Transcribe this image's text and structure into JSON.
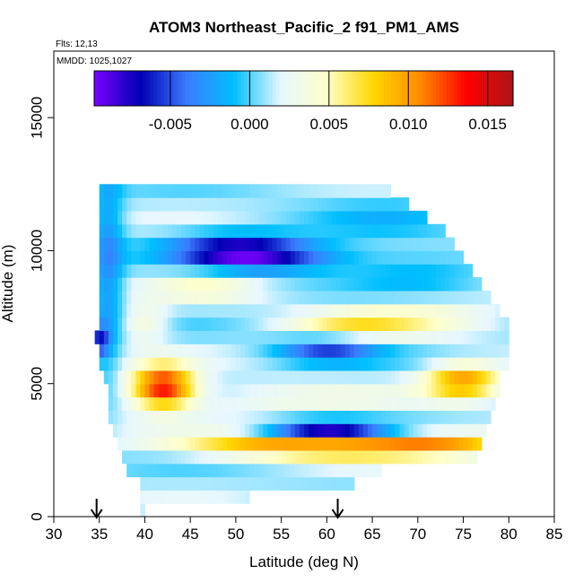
{
  "chart_data": {
    "type": "heatmap",
    "title": "ATOM3 Northeast_Pacific_2 f91_PM1_AMS",
    "flights_note": "Flts: 12,13",
    "date_note": "MMDD: 1025,1027",
    "xlabel": "Latitude (deg N)",
    "ylabel": "Altitude (m)",
    "xlim": [
      30,
      85
    ],
    "ylim": [
      0,
      17500
    ],
    "x_ticks": [
      30,
      35,
      40,
      45,
      50,
      55,
      60,
      65,
      70,
      75,
      80,
      85
    ],
    "y_ticks": [
      0,
      5000,
      10000,
      15000
    ],
    "grid": false,
    "colorbar": {
      "placement": "top",
      "range": [
        -0.0098,
        0.0166
      ],
      "ticks": [
        -0.005,
        0.0,
        0.005,
        0.01,
        0.015
      ],
      "tick_labels": [
        "-0.005",
        "0.000",
        "0.005",
        "0.010",
        "0.015"
      ],
      "colors": [
        "#7a00ff",
        "#0000b4",
        "#3a7dff",
        "#00bfff",
        "#e6f7ff",
        "#ffffc8",
        "#ffd700",
        "#ff8c00",
        "#ff0000",
        "#aa1616"
      ]
    },
    "arrows_latitude": [
      34.7,
      61.2
    ],
    "alt_bin_m": 500,
    "lat_bin_deg": 0.5,
    "coverage": [
      {
        "alt": 250,
        "lat_min": 39.5,
        "lat_max": 40.0
      },
      {
        "alt": 750,
        "lat_min": 39.5,
        "lat_max": 51.5
      },
      {
        "alt": 1250,
        "lat_min": 39.5,
        "lat_max": 63.0
      },
      {
        "alt": 1750,
        "lat_min": 38.0,
        "lat_max": 66.0
      },
      {
        "alt": 2250,
        "lat_min": 37.5,
        "lat_max": 76.5
      },
      {
        "alt": 2750,
        "lat_min": 37.0,
        "lat_max": 77.0
      },
      {
        "alt": 3250,
        "lat_min": 36.5,
        "lat_max": 77.5
      },
      {
        "alt": 3750,
        "lat_min": 36.0,
        "lat_max": 78.0
      },
      {
        "alt": 4250,
        "lat_min": 36.0,
        "lat_max": 78.5
      },
      {
        "alt": 4750,
        "lat_min": 36.0,
        "lat_max": 79.0
      },
      {
        "alt": 5250,
        "lat_min": 35.5,
        "lat_max": 79.0
      },
      {
        "alt": 5750,
        "lat_min": 35.0,
        "lat_max": 80.0
      },
      {
        "alt": 6250,
        "lat_min": 35.0,
        "lat_max": 80.0
      },
      {
        "alt": 6750,
        "lat_min": 34.5,
        "lat_max": 80.0
      },
      {
        "alt": 7250,
        "lat_min": 35.0,
        "lat_max": 80.0
      },
      {
        "alt": 7750,
        "lat_min": 35.0,
        "lat_max": 79.0
      },
      {
        "alt": 8250,
        "lat_min": 35.0,
        "lat_max": 78.0
      },
      {
        "alt": 8750,
        "lat_min": 35.0,
        "lat_max": 77.0
      },
      {
        "alt": 9250,
        "lat_min": 35.0,
        "lat_max": 76.0
      },
      {
        "alt": 9750,
        "lat_min": 35.0,
        "lat_max": 75.0
      },
      {
        "alt": 10250,
        "lat_min": 35.0,
        "lat_max": 74.0
      },
      {
        "alt": 10750,
        "lat_min": 35.0,
        "lat_max": 73.0
      },
      {
        "alt": 11250,
        "lat_min": 35.0,
        "lat_max": 71.0
      },
      {
        "alt": 11750,
        "lat_min": 35.0,
        "lat_max": 69.0
      },
      {
        "alt": 12250,
        "lat_min": 35.0,
        "lat_max": 67.0
      }
    ],
    "features": [
      {
        "lat": 42,
        "alt": 4900,
        "amp": 0.013,
        "w_lat": 2.5,
        "w_alt": 550
      },
      {
        "lat": 60,
        "alt": 2700,
        "amp": 0.0125,
        "w_lat": 10,
        "w_alt": 320
      },
      {
        "lat": 74,
        "alt": 2750,
        "amp": 0.0045,
        "w_lat": 5,
        "w_alt": 300
      },
      {
        "lat": 75,
        "alt": 5100,
        "amp": 0.009,
        "w_lat": 3,
        "w_alt": 450
      },
      {
        "lat": 60,
        "alt": 3200,
        "amp": -0.011,
        "w_lat": 5,
        "w_alt": 300
      },
      {
        "lat": 50,
        "alt": 9950,
        "amp": -0.008,
        "w_lat": 5,
        "w_alt": 500
      },
      {
        "lat": 56,
        "alt": 9800,
        "amp": -0.004,
        "w_lat": 6,
        "w_alt": 400
      },
      {
        "lat": 60,
        "alt": 6300,
        "amp": -0.006,
        "w_lat": 4,
        "w_alt": 350
      },
      {
        "lat": 62,
        "alt": 7200,
        "amp": 0.004,
        "w_lat": 5,
        "w_alt": 350
      },
      {
        "lat": 40,
        "alt": 7300,
        "amp": 0.0035,
        "w_lat": 2,
        "w_alt": 500
      },
      {
        "lat": 47,
        "alt": 8700,
        "amp": 0.003,
        "w_lat": 4,
        "w_alt": 500
      },
      {
        "lat": 70,
        "alt": 7500,
        "amp": 0.003,
        "w_lat": 6,
        "w_alt": 500
      },
      {
        "lat": 36,
        "alt": 9500,
        "amp": -0.004,
        "w_lat": 1.2,
        "w_alt": 3000
      },
      {
        "lat": 35,
        "alt": 6600,
        "amp": -0.006,
        "w_lat": 0.8,
        "w_alt": 400
      },
      {
        "lat": 55,
        "alt": 4400,
        "amp": 0.002,
        "w_lat": 10,
        "w_alt": 500
      },
      {
        "lat": 70,
        "alt": 9300,
        "amp": -0.002,
        "w_lat": 5,
        "w_alt": 600
      },
      {
        "lat": 66,
        "alt": 11200,
        "amp": -0.0015,
        "w_lat": 6,
        "w_alt": 600
      }
    ],
    "base_value": 0.001
  }
}
